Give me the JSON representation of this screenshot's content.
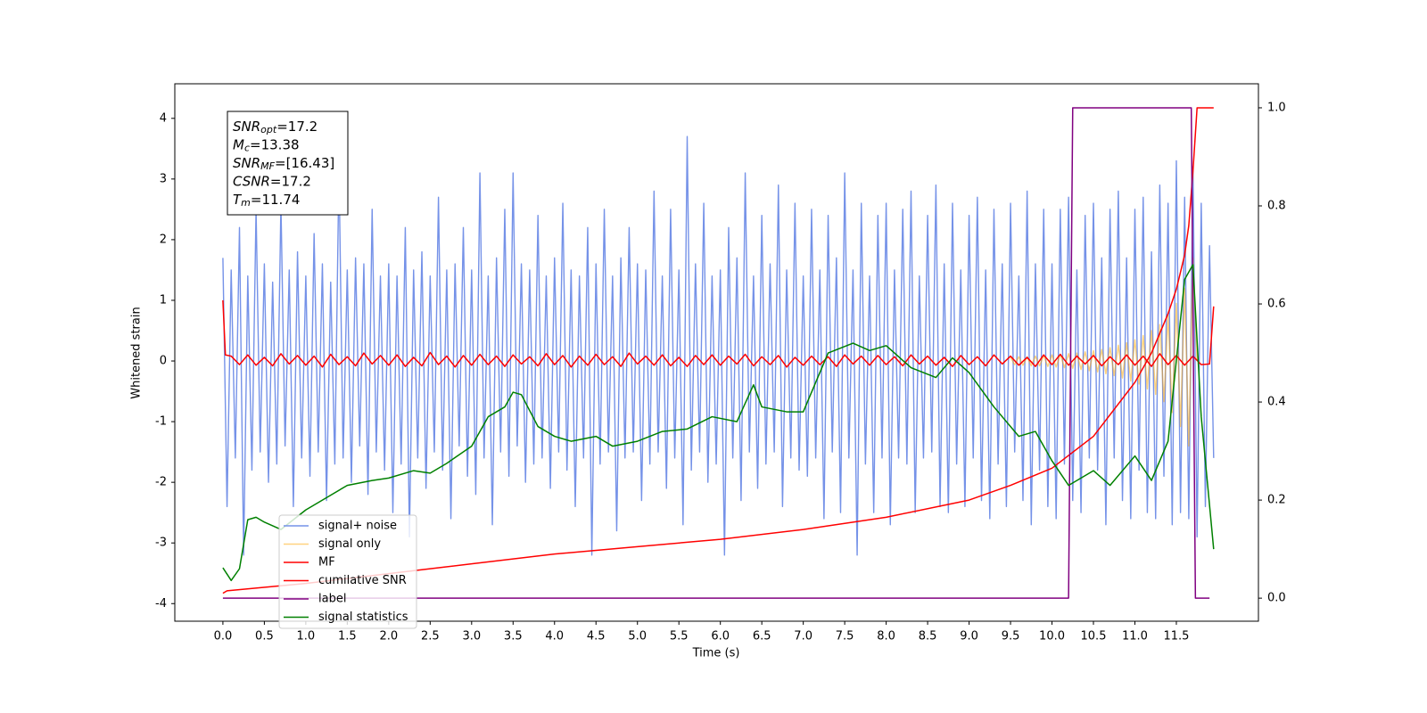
{
  "chart_data": {
    "type": "line",
    "xlabel": "Time (s)",
    "ylabel": "Whitened strain",
    "xlim": [
      -0.58,
      12.49
    ],
    "ylim": [
      -4.29,
      4.57
    ],
    "y2lim": [
      -0.047,
      1.049
    ],
    "xticks": [
      {
        "value": 0,
        "label": "0.0"
      },
      0.5,
      {
        "value": 1,
        "label": "1.0"
      },
      1.5,
      {
        "value": 2,
        "label": "2.0"
      },
      2.5,
      {
        "value": 3,
        "label": "3.0"
      },
      3.5,
      {
        "value": 4,
        "label": "4.0"
      },
      4.5,
      {
        "value": 5,
        "label": "5.0"
      },
      5.5,
      {
        "value": 6,
        "label": "6.0"
      },
      6.5,
      {
        "value": 7,
        "label": "7.0"
      },
      7.5,
      {
        "value": 8,
        "label": "8.0"
      },
      8.5,
      {
        "value": 9,
        "label": "9.0"
      },
      9.5,
      {
        "value": 10,
        "label": "10.0"
      },
      10.5,
      {
        "value": 11,
        "label": "11.0"
      },
      11.5
    ],
    "yticks": [
      -4,
      -3,
      -2,
      -1,
      0,
      1,
      2,
      3,
      4
    ],
    "y2ticks": [
      {
        "value": 0,
        "label": "0.0"
      },
      0.2,
      0.4,
      0.6,
      0.8,
      {
        "value": 1,
        "label": "1.0"
      }
    ],
    "legend": "lower left",
    "annotations": [
      {
        "text": "SNR",
        "sub": "opt",
        "value": "=17.2"
      },
      {
        "text": "M",
        "sub": "c",
        "value": "=13.38"
      },
      {
        "text": "SNR",
        "sub": "MF",
        "value": "=[16.43]"
      },
      {
        "text": "CSNR",
        "value": "=17.2"
      },
      {
        "text": "T",
        "sub": "m",
        "value": "=11.74"
      }
    ],
    "series": [
      {
        "name": "signal+ noise",
        "color": "#7592e8",
        "x": [
          0,
          0.05,
          0.1,
          0.15,
          0.2,
          0.25,
          0.3,
          0.35,
          0.4,
          0.45,
          0.5,
          0.55,
          0.6,
          0.65,
          0.7,
          0.75,
          0.8,
          0.85,
          0.9,
          0.95,
          1,
          1.05,
          1.1,
          1.15,
          1.2,
          1.25,
          1.3,
          1.35,
          1.4,
          1.45,
          1.5,
          1.55,
          1.6,
          1.65,
          1.7,
          1.75,
          1.8,
          1.85,
          1.9,
          1.95,
          2,
          2.05,
          2.1,
          2.15,
          2.2,
          2.25,
          2.3,
          2.35,
          2.4,
          2.45,
          2.5,
          2.55,
          2.6,
          2.65,
          2.7,
          2.75,
          2.8,
          2.85,
          2.9,
          2.95,
          3,
          3.05,
          3.1,
          3.15,
          3.2,
          3.25,
          3.3,
          3.35,
          3.4,
          3.45,
          3.5,
          3.55,
          3.6,
          3.65,
          3.7,
          3.75,
          3.8,
          3.85,
          3.9,
          3.95,
          4,
          4.05,
          4.1,
          4.15,
          4.2,
          4.25,
          4.3,
          4.35,
          4.4,
          4.45,
          4.5,
          4.55,
          4.6,
          4.65,
          4.7,
          4.75,
          4.8,
          4.85,
          4.9,
          4.95,
          5,
          5.05,
          5.1,
          5.15,
          5.2,
          5.25,
          5.3,
          5.35,
          5.4,
          5.45,
          5.5,
          5.55,
          5.6,
          5.65,
          5.7,
          5.75,
          5.8,
          5.85,
          5.9,
          5.95,
          6,
          6.05,
          6.1,
          6.15,
          6.2,
          6.25,
          6.3,
          6.35,
          6.4,
          6.45,
          6.5,
          6.55,
          6.6,
          6.65,
          6.7,
          6.75,
          6.8,
          6.85,
          6.9,
          6.95,
          7,
          7.05,
          7.1,
          7.15,
          7.2,
          7.25,
          7.3,
          7.35,
          7.4,
          7.45,
          7.5,
          7.55,
          7.6,
          7.65,
          7.7,
          7.75,
          7.8,
          7.85,
          7.9,
          7.95,
          8,
          8.05,
          8.1,
          8.15,
          8.2,
          8.25,
          8.3,
          8.35,
          8.4,
          8.45,
          8.5,
          8.55,
          8.6,
          8.65,
          8.7,
          8.75,
          8.8,
          8.85,
          8.9,
          8.95,
          9,
          9.05,
          9.1,
          9.15,
          9.2,
          9.25,
          9.3,
          9.35,
          9.4,
          9.45,
          9.5,
          9.55,
          9.6,
          9.65,
          9.7,
          9.75,
          9.8,
          9.85,
          9.9,
          9.95,
          10,
          10.05,
          10.1,
          10.15,
          10.2,
          10.25,
          10.3,
          10.35,
          10.4,
          10.45,
          10.5,
          10.55,
          10.6,
          10.65,
          10.7,
          10.75,
          10.8,
          10.85,
          10.9,
          10.95,
          11,
          11.05,
          11.1,
          11.15,
          11.2,
          11.25,
          11.3,
          11.35,
          11.4,
          11.45,
          11.5,
          11.55,
          11.6,
          11.65,
          11.7,
          11.75,
          11.8,
          11.85,
          11.9,
          11.95
        ],
        "values": [
          1.7,
          -2.4,
          1.5,
          -1.6,
          2.2,
          -3.2,
          1.4,
          -1.8,
          2.5,
          -1.5,
          1.6,
          -2.0,
          1.3,
          -1.7,
          2.6,
          -1.4,
          1.5,
          -2.4,
          1.8,
          -1.6,
          1.4,
          -1.9,
          2.1,
          -1.5,
          1.6,
          -2.3,
          1.3,
          -1.7,
          3.2,
          -1.6,
          1.5,
          -2.0,
          1.7,
          -1.4,
          1.6,
          -2.2,
          2.5,
          -1.5,
          1.4,
          -1.8,
          1.6,
          -2.5,
          1.4,
          -1.7,
          2.2,
          -2.9,
          1.5,
          -1.6,
          1.8,
          -2.1,
          1.4,
          -1.5,
          2.7,
          -1.8,
          1.5,
          -2.6,
          1.6,
          -1.4,
          2.2,
          -1.9,
          1.5,
          -2.2,
          3.1,
          -1.6,
          1.4,
          -2.7,
          1.7,
          -1.5,
          2.5,
          -1.9,
          3.1,
          -1.4,
          1.6,
          -2.0,
          1.5,
          -1.7,
          2.4,
          -1.6,
          1.4,
          -2.1,
          1.7,
          -1.5,
          2.6,
          -1.8,
          1.5,
          -2.4,
          1.4,
          -1.6,
          2.2,
          -3.2,
          1.6,
          -1.7,
          2.5,
          -1.5,
          1.4,
          -2.8,
          1.7,
          -1.6,
          2.2,
          -1.5,
          1.6,
          -2.3,
          1.5,
          -1.7,
          2.8,
          -1.5,
          1.4,
          -2.1,
          2.5,
          -1.6,
          1.5,
          -2.7,
          3.7,
          -1.8,
          1.6,
          -1.5,
          2.6,
          -2.0,
          1.4,
          -1.7,
          1.5,
          -3.2,
          2.2,
          -1.6,
          1.7,
          -2.3,
          3.1,
          -1.5,
          1.4,
          -2.1,
          2.4,
          -1.7,
          1.6,
          -1.5,
          2.9,
          -2.4,
          1.5,
          -1.6,
          2.6,
          -1.8,
          1.4,
          -1.9,
          2.5,
          -1.6,
          1.5,
          -2.6,
          2.4,
          -1.5,
          1.7,
          -2.5,
          3.1,
          -1.6,
          1.5,
          -3.2,
          2.6,
          -1.7,
          1.4,
          -2.5,
          2.4,
          -1.6,
          2.6,
          -2.7,
          1.5,
          -1.6,
          2.5,
          -1.7,
          2.8,
          -2.5,
          1.4,
          -1.6,
          2.4,
          -1.5,
          2.9,
          -2.4,
          1.6,
          -2.5,
          2.6,
          -1.7,
          1.5,
          -2.4,
          2.4,
          -1.6,
          2.7,
          -2.3,
          1.5,
          -2.6,
          2.5,
          -1.7,
          1.6,
          -2.4,
          2.6,
          -1.5,
          1.4,
          -2.3,
          2.8,
          -2.7,
          1.6,
          -1.8,
          2.5,
          -2.4,
          1.6,
          -2.6,
          2.5,
          -1.7,
          2.7,
          -2.3,
          1.5,
          -2.5,
          2.4,
          -1.6,
          2.6,
          -1.8,
          1.7,
          -2.7,
          2.5,
          -1.6,
          2.8,
          -2.3,
          1.7,
          -2.6,
          2.5,
          -1.8,
          2.7,
          -2.5,
          1.8,
          -2.6,
          2.9,
          -1.9,
          2.6,
          -2.7,
          3.3,
          -2.5,
          2.7,
          -2.6,
          3.2,
          -2.9,
          2.6,
          -2.4,
          1.9,
          -1.6
        ]
      },
      {
        "name": "signal only",
        "color": "#ffa500",
        "x": [
          9.5,
          9.55,
          9.6,
          9.65,
          9.7,
          9.75,
          9.8,
          9.85,
          9.9,
          9.95,
          10,
          10.05,
          10.1,
          10.15,
          10.2,
          10.25,
          10.3,
          10.35,
          10.4,
          10.45,
          10.5,
          10.55,
          10.6,
          10.65,
          10.7,
          10.75,
          10.8,
          10.85,
          10.9,
          10.95,
          11,
          11.05,
          11.1,
          11.15,
          11.2,
          11.25,
          11.3,
          11.35,
          11.4,
          11.45,
          11.5,
          11.55,
          11.6,
          11.65,
          11.7,
          11.75
        ],
        "values": [
          0.06,
          -0.06,
          0.07,
          -0.07,
          0.07,
          -0.08,
          0.08,
          -0.08,
          0.09,
          -0.09,
          0.1,
          -0.1,
          0.11,
          -0.11,
          0.12,
          -0.12,
          0.13,
          -0.14,
          0.15,
          -0.16,
          0.17,
          -0.18,
          0.19,
          -0.21,
          0.22,
          -0.24,
          0.26,
          -0.28,
          0.3,
          -0.33,
          0.35,
          -0.38,
          0.42,
          -0.46,
          0.5,
          -0.55,
          0.6,
          -0.67,
          0.75,
          -0.85,
          0.95,
          -1.08,
          1.2,
          -1.4,
          1.7,
          0
        ]
      },
      {
        "name": "MF",
        "color": "#ff0000",
        "x": [
          0,
          0.03,
          0.1,
          0.2,
          0.3,
          0.4,
          0.5,
          0.6,
          0.7,
          0.8,
          0.9,
          1,
          1.1,
          1.2,
          1.3,
          1.4,
          1.5,
          1.6,
          1.7,
          1.8,
          1.9,
          2,
          2.1,
          2.2,
          2.3,
          2.4,
          2.5,
          2.6,
          2.7,
          2.8,
          2.9,
          3,
          3.1,
          3.2,
          3.3,
          3.4,
          3.5,
          3.6,
          3.7,
          3.8,
          3.9,
          4,
          4.1,
          4.2,
          4.3,
          4.4,
          4.5,
          4.6,
          4.7,
          4.8,
          4.9,
          5,
          5.1,
          5.2,
          5.3,
          5.4,
          5.5,
          5.6,
          5.7,
          5.8,
          5.9,
          6,
          6.1,
          6.2,
          6.3,
          6.4,
          6.5,
          6.6,
          6.7,
          6.8,
          6.9,
          7,
          7.1,
          7.2,
          7.3,
          7.4,
          7.5,
          7.6,
          7.7,
          7.8,
          7.9,
          8,
          8.1,
          8.2,
          8.3,
          8.4,
          8.5,
          8.6,
          8.7,
          8.8,
          8.9,
          9,
          9.1,
          9.2,
          9.3,
          9.4,
          9.5,
          9.6,
          9.7,
          9.8,
          9.9,
          10,
          10.1,
          10.2,
          10.3,
          10.4,
          10.5,
          10.6,
          10.7,
          10.8,
          10.9,
          11,
          11.1,
          11.2,
          11.3,
          11.4,
          11.5,
          11.6,
          11.7,
          11.8,
          11.9,
          11.95
        ],
        "values": [
          1.0,
          0.1,
          0.08,
          -0.06,
          0.1,
          -0.07,
          0.06,
          -0.08,
          0.12,
          -0.05,
          0.09,
          -0.07,
          0.08,
          -0.1,
          0.11,
          -0.06,
          0.07,
          -0.08,
          0.13,
          -0.05,
          0.09,
          -0.07,
          0.1,
          -0.09,
          0.06,
          -0.08,
          0.14,
          -0.06,
          0.08,
          -0.1,
          0.09,
          -0.07,
          0.11,
          -0.06,
          0.08,
          -0.09,
          0.1,
          -0.05,
          0.07,
          -0.08,
          0.12,
          -0.06,
          0.09,
          -0.1,
          0.08,
          -0.07,
          0.11,
          -0.06,
          0.07,
          -0.09,
          0.13,
          -0.05,
          0.08,
          -0.07,
          0.1,
          -0.08,
          0.06,
          -0.09,
          0.09,
          -0.06,
          0.1,
          -0.07,
          0.08,
          -0.05,
          0.11,
          -0.08,
          0.07,
          -0.06,
          0.09,
          -0.1,
          0.06,
          -0.07,
          0.08,
          -0.06,
          0.07,
          -0.09,
          0.1,
          -0.05,
          0.08,
          -0.07,
          0.09,
          -0.06,
          0.07,
          -0.08,
          0.1,
          -0.05,
          0.08,
          -0.07,
          0.06,
          -0.09,
          0.09,
          -0.06,
          0.07,
          -0.08,
          0.1,
          -0.05,
          0.08,
          -0.07,
          0.06,
          -0.09,
          0.1,
          -0.06,
          0.11,
          -0.07,
          0.08,
          -0.05,
          0.09,
          -0.08,
          0.07,
          -0.06,
          0.1,
          -0.07,
          0.08,
          -0.09,
          0.12,
          -0.06,
          0.09,
          -0.07,
          0.08,
          -0.06,
          -0.05,
          0.9
        ]
      },
      {
        "name": "cumilative SNR",
        "color": "#ff0000",
        "axis": "y2",
        "x": [
          0,
          0.05,
          1,
          2,
          3,
          4,
          5,
          6,
          7,
          8,
          9,
          9.5,
          10,
          10.5,
          11,
          11.2,
          11.4,
          11.5,
          11.6,
          11.65,
          11.7,
          11.75,
          11.95
        ],
        "values": [
          0.01,
          0.015,
          0.03,
          0.05,
          0.07,
          0.09,
          0.105,
          0.12,
          0.14,
          0.165,
          0.2,
          0.23,
          0.265,
          0.33,
          0.44,
          0.5,
          0.58,
          0.63,
          0.7,
          0.76,
          0.87,
          1,
          1
        ]
      },
      {
        "name": "label",
        "color": "#800080",
        "axis": "y2",
        "x": [
          0,
          10.2,
          10.25,
          11.68,
          11.73,
          11.9
        ],
        "values": [
          0,
          0,
          1,
          1,
          0,
          0
        ]
      },
      {
        "name": "signal statistics",
        "color": "#008000",
        "axis": "y2",
        "x": [
          0,
          0.1,
          0.2,
          0.3,
          0.4,
          0.5,
          0.7,
          1,
          1.3,
          1.5,
          1.8,
          2,
          2.3,
          2.5,
          2.7,
          3,
          3.2,
          3.4,
          3.5,
          3.6,
          3.8,
          4,
          4.2,
          4.5,
          4.7,
          5,
          5.3,
          5.6,
          5.9,
          6.2,
          6.4,
          6.5,
          6.8,
          7,
          7.3,
          7.6,
          7.8,
          8,
          8.3,
          8.6,
          8.8,
          9,
          9.3,
          9.6,
          9.8,
          10,
          10.2,
          10.5,
          10.7,
          11,
          11.2,
          11.4,
          11.6,
          11.7,
          11.8,
          11.95
        ],
        "values": [
          0.062,
          0.036,
          0.06,
          0.16,
          0.165,
          0.155,
          0.14,
          0.18,
          0.21,
          0.23,
          0.24,
          0.245,
          0.26,
          0.255,
          0.275,
          0.31,
          0.37,
          0.39,
          0.42,
          0.415,
          0.35,
          0.33,
          0.32,
          0.33,
          0.31,
          0.32,
          0.34,
          0.345,
          0.37,
          0.36,
          0.435,
          0.39,
          0.38,
          0.38,
          0.5,
          0.52,
          0.505,
          0.515,
          0.47,
          0.45,
          0.49,
          0.46,
          0.39,
          0.33,
          0.34,
          0.28,
          0.23,
          0.26,
          0.23,
          0.29,
          0.24,
          0.32,
          0.65,
          0.68,
          0.37,
          0.1
        ]
      }
    ]
  }
}
